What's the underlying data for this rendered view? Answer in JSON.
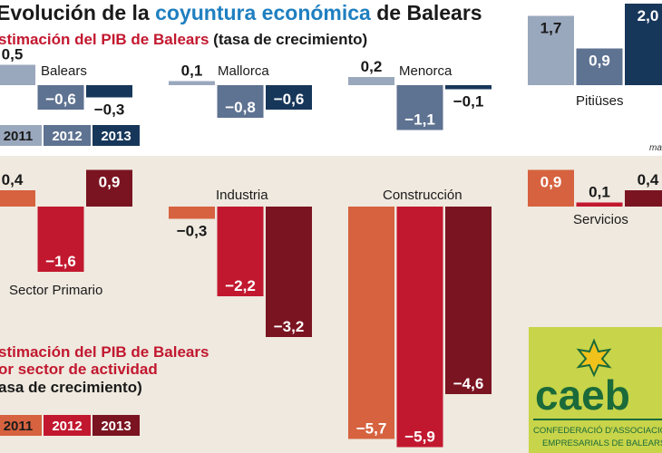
{
  "title": {
    "part1": "Evolución de la ",
    "highlight": "coyuntura económica",
    "part2": " de Balears"
  },
  "source_fragment": "ma",
  "chart_data": [
    {
      "type": "bar",
      "title": "stimación del PIB de Balears",
      "subtitle": "(tasa de crecimiento)",
      "categories": [
        "Balears",
        "Mallorca",
        "Menorca",
        "Pitiüses"
      ],
      "series": [
        {
          "name": "2011",
          "color": "#9aa8bd",
          "values": [
            0.5,
            0.1,
            0.2,
            1.7
          ]
        },
        {
          "name": "2012",
          "color": "#5e7291",
          "values": [
            -0.6,
            -0.8,
            -1.1,
            0.9
          ]
        },
        {
          "name": "2013",
          "color": "#17375a",
          "values": [
            -0.3,
            -0.6,
            -0.1,
            2.0
          ]
        }
      ],
      "value_labels": [
        [
          "0,5",
          "0,1",
          "0,2",
          "1,7"
        ],
        [
          "−0,6",
          "−0,8",
          "−1,1",
          "0,9"
        ],
        [
          "−0,3",
          "−0,6",
          "−0,1",
          "2,0"
        ]
      ],
      "legend": [
        "2011",
        "2012",
        "2013"
      ]
    },
    {
      "type": "bar",
      "title_lines": [
        "stimación del PIB de Balears",
        "or sector de actividad"
      ],
      "subtitle": "asa de crecimiento)",
      "categories": [
        "Sector Primario",
        "Industria",
        "Construcción",
        "Servicios"
      ],
      "series": [
        {
          "name": "2011",
          "color": "#d6623f",
          "values": [
            0.4,
            -0.3,
            -5.7,
            0.9
          ]
        },
        {
          "name": "2012",
          "color": "#c2182f",
          "values": [
            -1.6,
            -2.2,
            -5.9,
            0.1
          ]
        },
        {
          "name": "2013",
          "color": "#7a1421",
          "values": [
            0.9,
            -3.2,
            -4.6,
            0.4
          ]
        }
      ],
      "value_labels": [
        [
          "0,4",
          "−0,3",
          "−5,7",
          "0,9"
        ],
        [
          "−1,6",
          "−2,2",
          "−5,9",
          "0,1"
        ],
        [
          "0,9",
          "−3,2",
          "−4,6",
          "0,4"
        ]
      ],
      "legend": [
        "2011",
        "2012",
        "2013"
      ]
    }
  ],
  "logo": {
    "name": "caeb",
    "line1": "CONFEDERACIÓ D'ASSOCIACIONS",
    "line2": "EMPRESARIALS DE BALEARS"
  }
}
